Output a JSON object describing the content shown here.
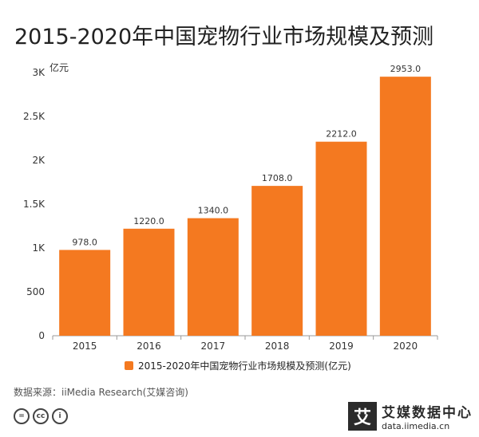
{
  "title": "2015-2020年中国宠物行业市场规模及预测",
  "unit_label": "亿元",
  "legend_label": "2015-2020年中国宠物行业市场规模及预测(亿元)",
  "source": "数据来源：iiMedia Research(艾媒咨询)",
  "cc_icons": [
    "=",
    "cc",
    "i"
  ],
  "brand": {
    "mark": "艾",
    "name": "艾媒数据中心",
    "url": "data.iimedia.cn"
  },
  "colors": {
    "bar": "#f47920",
    "axis": "#999999",
    "text": "#333333"
  },
  "chart_data": {
    "type": "bar",
    "categories": [
      "2015",
      "2016",
      "2017",
      "2018",
      "2019",
      "2020"
    ],
    "values": [
      978.0,
      1220.0,
      1340.0,
      1708.0,
      2212.0,
      2953.0
    ],
    "data_labels": [
      "978.0",
      "1220.0",
      "1340.0",
      "1708.0",
      "2212.0",
      "2953.0"
    ],
    "ylabel": "亿元",
    "ylim": [
      0,
      3000
    ],
    "yticks": [
      0,
      500,
      1000,
      1500,
      2000,
      2500,
      3000
    ],
    "ytick_labels": [
      "0",
      "500",
      "1K",
      "1.5K",
      "2K",
      "2.5K",
      "3K"
    ],
    "grid": false,
    "legend": "bottom"
  }
}
